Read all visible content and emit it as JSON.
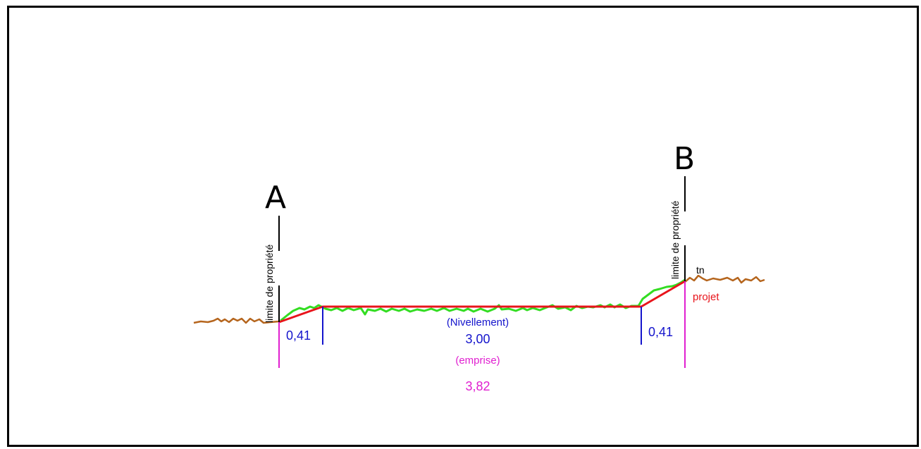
{
  "points": {
    "a": "A",
    "b": "B"
  },
  "property_limit_label": "limite de propriété",
  "labels": {
    "tn": "tn",
    "projet": "projet"
  },
  "dimensions": {
    "left_slope": "0,41",
    "right_slope": "0,41",
    "nivellement_label": "(Nivellement)",
    "nivellement_value": "3,00",
    "emprise_label": "(emprise)",
    "emprise_value": "3,82"
  },
  "colors": {
    "terrain": "#b5651d",
    "project": "#e8141b",
    "grass": "#33dd22",
    "dimension_blue": "#1414cc",
    "emprise_magenta": "#e01fd0",
    "frame": "#000000"
  }
}
